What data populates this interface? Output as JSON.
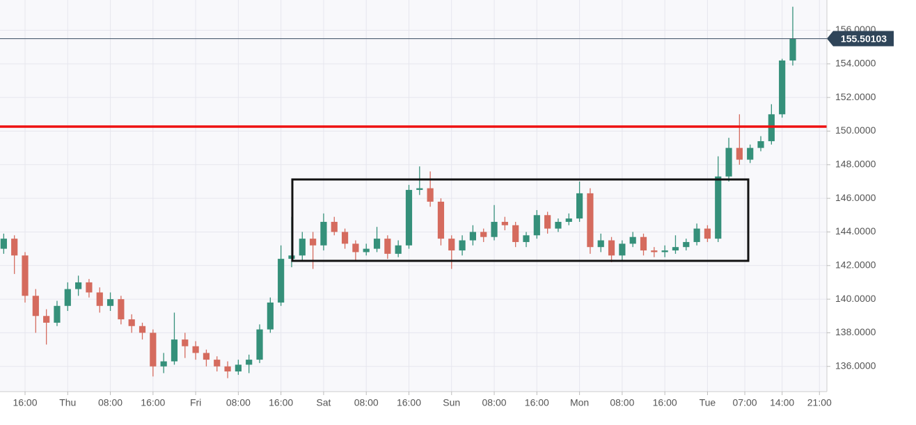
{
  "chart_data": {
    "type": "candlestick",
    "up_color": "#35907a",
    "down_color": "#d56b5e",
    "xlim": [
      -4.7,
      150.4
    ],
    "ylim": [
      134.5,
      157.8
    ],
    "xticks": [
      {
        "value": 0,
        "label": "16:00"
      },
      {
        "value": 8,
        "label": "Thu"
      },
      {
        "value": 16,
        "label": "08:00"
      },
      {
        "value": 24,
        "label": "16:00"
      },
      {
        "value": 32,
        "label": "Fri"
      },
      {
        "value": 40,
        "label": "08:00"
      },
      {
        "value": 48,
        "label": "16:00"
      },
      {
        "value": 56,
        "label": "Sat"
      },
      {
        "value": 64,
        "label": "08:00"
      },
      {
        "value": 72,
        "label": "16:00"
      },
      {
        "value": 80,
        "label": "Sun"
      },
      {
        "value": 88,
        "label": "08:00"
      },
      {
        "value": 96,
        "label": "16:00"
      },
      {
        "value": 104,
        "label": "Mon"
      },
      {
        "value": 112,
        "label": "08:00"
      },
      {
        "value": 120,
        "label": "16:00"
      },
      {
        "value": 128,
        "label": "Tue"
      },
      {
        "value": 135,
        "label": "07:00"
      },
      {
        "value": 142,
        "label": "14:00"
      },
      {
        "value": 149,
        "label": "21:00"
      }
    ],
    "yticks": [
      {
        "value": 136,
        "label": "136.0000"
      },
      {
        "value": 138,
        "label": "138.0000"
      },
      {
        "value": 140,
        "label": "140.0000"
      },
      {
        "value": 142,
        "label": "142.0000"
      },
      {
        "value": 144,
        "label": "144.0000"
      },
      {
        "value": 146,
        "label": "146.0000"
      },
      {
        "value": 148,
        "label": "148.0000"
      },
      {
        "value": 150,
        "label": "150.0000"
      },
      {
        "value": 152,
        "label": "152.0000"
      },
      {
        "value": 154,
        "label": "154.0000"
      },
      {
        "value": 156,
        "label": "156.0000"
      }
    ],
    "grid": true,
    "last_price": 155.50103,
    "x": [
      -4,
      -2,
      0,
      2,
      4,
      6,
      8,
      10,
      12,
      14,
      16,
      18,
      20,
      22,
      24,
      26,
      28,
      30,
      32,
      34,
      36,
      38,
      40,
      42,
      44,
      46,
      48,
      50,
      52,
      54,
      56,
      58,
      60,
      62,
      64,
      66,
      68,
      70,
      72,
      74,
      76,
      78,
      80,
      82,
      84,
      86,
      88,
      90,
      92,
      94,
      96,
      98,
      100,
      102,
      104,
      106,
      108,
      110,
      112,
      114,
      116,
      118,
      120,
      122,
      124,
      126,
      128,
      130,
      132,
      134,
      136,
      138,
      140,
      142,
      144
    ],
    "open": [
      143.0,
      143.6,
      142.6,
      140.2,
      139.0,
      138.6,
      139.6,
      140.6,
      141.0,
      140.4,
      139.6,
      140.0,
      138.8,
      138.4,
      138.0,
      136.0,
      136.3,
      137.6,
      137.2,
      136.8,
      136.4,
      136.0,
      135.7,
      136.1,
      136.4,
      138.2,
      139.8,
      142.4,
      142.6,
      143.6,
      143.2,
      144.6,
      144.0,
      143.3,
      142.8,
      143.0,
      143.6,
      142.7,
      143.2,
      146.5,
      146.6,
      145.8,
      143.6,
      142.9,
      143.5,
      144.0,
      143.7,
      144.6,
      144.4,
      143.4,
      143.8,
      145.0,
      144.2,
      144.6,
      144.8,
      146.3,
      143.1,
      143.5,
      142.6,
      143.3,
      143.7,
      142.9,
      142.8,
      142.9,
      143.1,
      143.4,
      144.2,
      143.6,
      147.3,
      149.0,
      148.3,
      149.0,
      149.4,
      151.0,
      154.2
    ],
    "high": [
      143.9,
      143.8,
      142.8,
      140.6,
      139.4,
      139.9,
      141.0,
      141.4,
      141.2,
      140.7,
      140.4,
      140.2,
      139.1,
      138.6,
      138.2,
      136.8,
      139.2,
      138.0,
      137.5,
      137.0,
      136.6,
      136.3,
      136.4,
      136.7,
      138.5,
      140.1,
      143.2,
      144.9,
      144.0,
      144.0,
      145.1,
      144.9,
      144.2,
      143.5,
      143.3,
      144.3,
      143.8,
      143.5,
      146.8,
      147.9,
      147.6,
      146.0,
      143.8,
      143.8,
      144.4,
      144.2,
      145.6,
      144.9,
      144.6,
      144.0,
      145.3,
      145.2,
      144.8,
      145.1,
      147.0,
      146.6,
      143.9,
      143.7,
      143.5,
      144.0,
      143.9,
      143.1,
      143.2,
      143.8,
      143.6,
      144.5,
      144.4,
      148.5,
      149.6,
      151.0,
      149.2,
      149.7,
      151.6,
      154.3,
      157.4
    ],
    "low": [
      142.7,
      141.5,
      139.8,
      138.0,
      137.3,
      138.4,
      139.3,
      140.2,
      140.1,
      139.2,
      139.3,
      138.5,
      138.0,
      137.6,
      135.4,
      135.6,
      136.1,
      136.5,
      136.4,
      136.0,
      135.7,
      135.3,
      135.5,
      135.6,
      136.2,
      138.0,
      139.6,
      141.9,
      142.3,
      141.8,
      142.9,
      143.8,
      143.0,
      142.3,
      142.6,
      142.8,
      142.4,
      142.5,
      143.0,
      146.2,
      145.5,
      143.2,
      141.8,
      142.6,
      143.2,
      143.4,
      143.5,
      144.1,
      143.1,
      143.1,
      143.6,
      143.9,
      144.0,
      144.4,
      144.6,
      142.7,
      142.8,
      142.2,
      142.3,
      143.1,
      142.6,
      142.5,
      142.5,
      142.7,
      142.9,
      143.2,
      143.4,
      143.4,
      147.0,
      148.0,
      148.1,
      148.8,
      149.2,
      150.8,
      153.9
    ],
    "close": [
      143.6,
      142.6,
      140.2,
      139.0,
      138.6,
      139.6,
      140.6,
      141.0,
      140.4,
      139.6,
      140.0,
      138.8,
      138.4,
      138.0,
      136.0,
      136.3,
      137.6,
      137.2,
      136.8,
      136.4,
      136.0,
      135.7,
      136.1,
      136.4,
      138.2,
      139.8,
      142.4,
      142.6,
      143.6,
      143.2,
      144.6,
      144.0,
      143.3,
      142.8,
      143.0,
      143.6,
      142.7,
      143.2,
      146.5,
      146.6,
      145.8,
      143.6,
      142.9,
      143.5,
      144.0,
      143.7,
      144.6,
      144.4,
      143.4,
      143.8,
      145.0,
      144.2,
      144.6,
      144.8,
      146.3,
      143.1,
      143.5,
      142.6,
      143.3,
      143.7,
      142.9,
      142.8,
      142.9,
      143.1,
      143.4,
      144.2,
      143.6,
      147.3,
      149.0,
      148.3,
      149.0,
      149.4,
      151.0,
      154.2,
      155.5
    ]
  }
}
